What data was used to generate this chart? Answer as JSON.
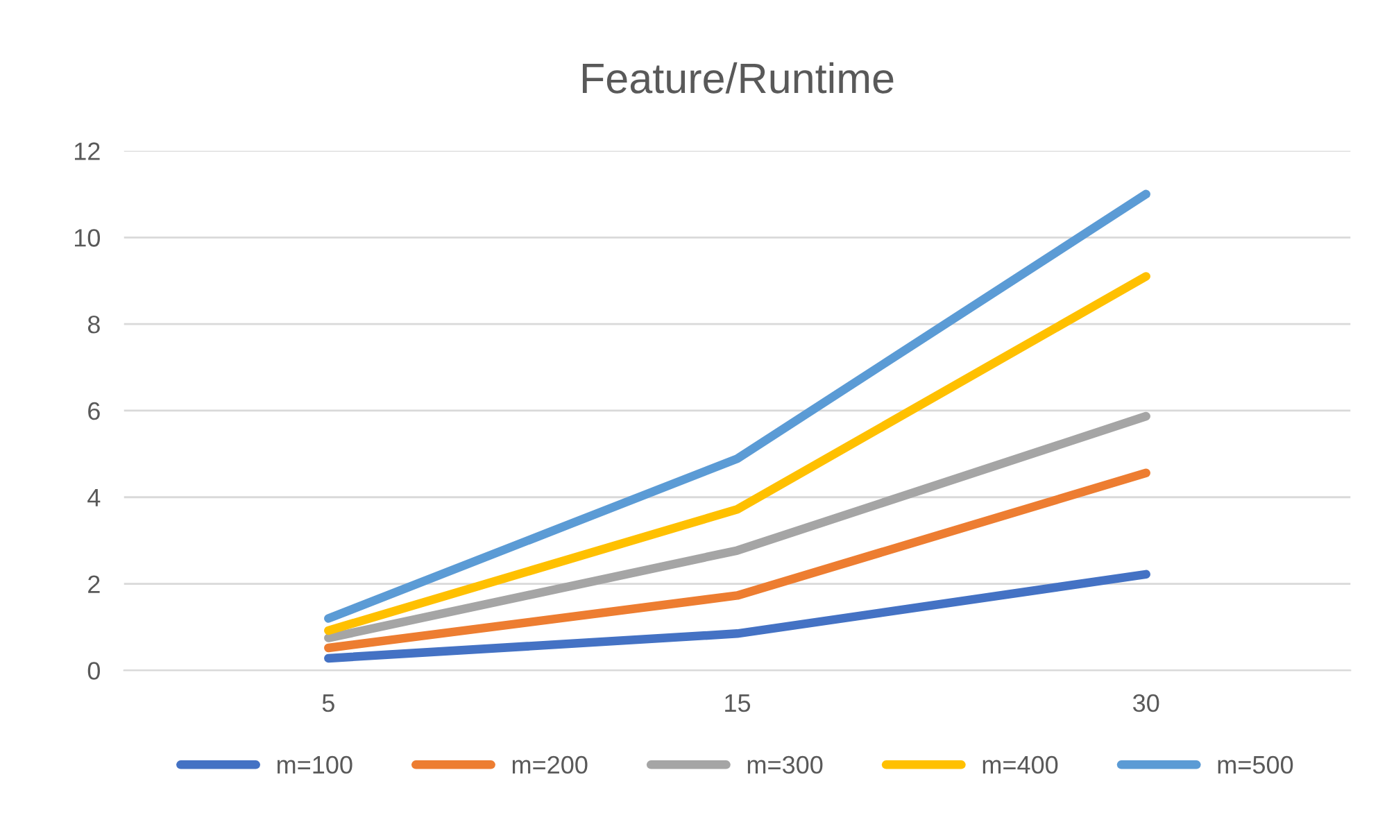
{
  "chart_data": {
    "type": "line",
    "title": "Feature/Runtime",
    "categories": [
      "5",
      "15",
      "30"
    ],
    "series": [
      {
        "name": "m=100",
        "color": "#4472c4",
        "values": [
          0.28,
          0.85,
          2.22
        ]
      },
      {
        "name": "m=200",
        "color": "#ed7d31",
        "values": [
          0.52,
          1.73,
          4.56
        ]
      },
      {
        "name": "m=300",
        "color": "#a5a5a5",
        "values": [
          0.75,
          2.77,
          5.87
        ]
      },
      {
        "name": "m=400",
        "color": "#ffc000",
        "values": [
          0.92,
          3.72,
          9.1
        ]
      },
      {
        "name": "m=500",
        "color": "#5b9bd5",
        "values": [
          1.2,
          4.89,
          11.0
        ]
      }
    ],
    "ylim": [
      0,
      12
    ],
    "yticks": [
      0,
      2,
      4,
      6,
      8,
      10,
      12
    ],
    "grid": "y",
    "legend": "bottom",
    "marker": "none",
    "line_style": "solid"
  }
}
